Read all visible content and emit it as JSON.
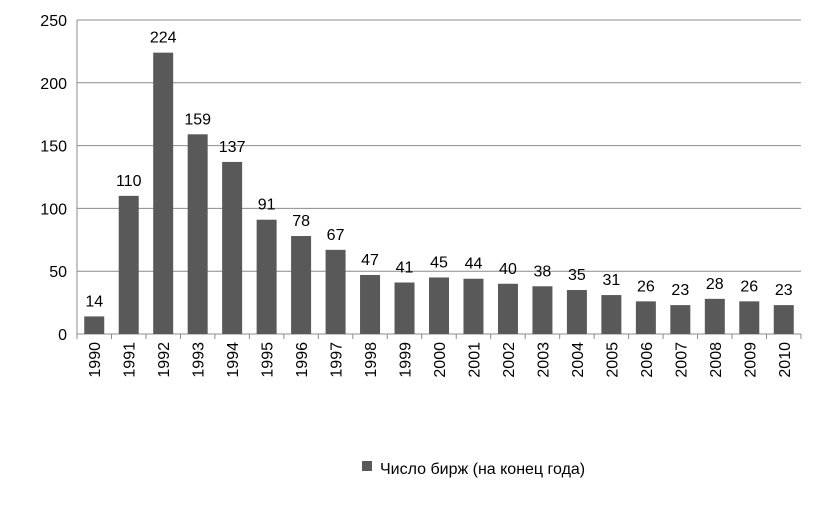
{
  "chart_data": {
    "type": "bar",
    "title": "",
    "xlabel": "",
    "ylabel": "",
    "categories": [
      "1990",
      "1991",
      "1992",
      "1993",
      "1994",
      "1995",
      "1996",
      "1997",
      "1998",
      "1999",
      "2000",
      "2001",
      "2002",
      "2003",
      "2004",
      "2005",
      "2006",
      "2007",
      "2008",
      "2009",
      "2010"
    ],
    "series": [
      {
        "name": "Число бирж (на конец года)",
        "values": [
          14,
          110,
          224,
          159,
          137,
          91,
          78,
          67,
          47,
          41,
          45,
          44,
          40,
          38,
          35,
          31,
          26,
          23,
          28,
          26,
          23
        ]
      }
    ],
    "ylim": [
      0,
      250
    ],
    "yticks": [
      0,
      50,
      100,
      150,
      200,
      250
    ],
    "grid": true,
    "legend": "bottom",
    "data_labels": true,
    "colors": {
      "bar": "#595959",
      "grid": "#8c8c8c",
      "axis": "#8c8c8c"
    }
  }
}
